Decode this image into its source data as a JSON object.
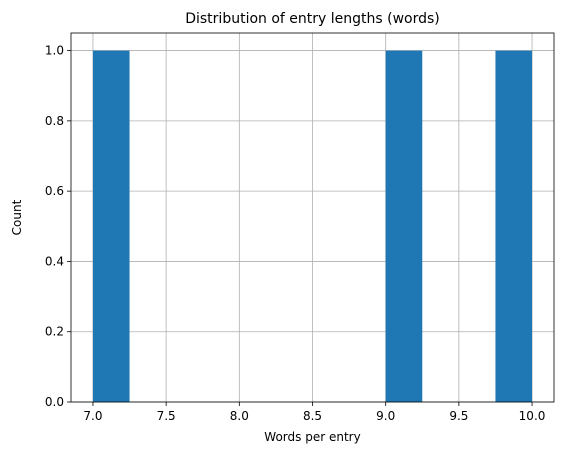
{
  "chart_data": {
    "type": "bar",
    "title": "Distribution of entry lengths (words)",
    "xlabel": "Words per entry",
    "ylabel": "Count",
    "xlim": [
      6.85,
      10.15
    ],
    "ylim": [
      0,
      1.05
    ],
    "xticks": [
      7.0,
      7.5,
      8.0,
      8.5,
      9.0,
      9.5,
      10.0
    ],
    "xtick_labels": [
      "7.0",
      "7.5",
      "8.0",
      "8.5",
      "9.0",
      "9.5",
      "10.0"
    ],
    "yticks": [
      0.0,
      0.2,
      0.4,
      0.6,
      0.8,
      1.0
    ],
    "ytick_labels": [
      "0.0",
      "0.2",
      "0.4",
      "0.6",
      "0.8",
      "1.0"
    ],
    "grid": true,
    "bin_edges": [
      7.0,
      7.25,
      7.5,
      7.75,
      8.0,
      8.25,
      8.5,
      8.75,
      9.0,
      9.25,
      9.5,
      9.75,
      10.0
    ],
    "counts": [
      1,
      0,
      0,
      0,
      0,
      0,
      0,
      0,
      1,
      0,
      0,
      1
    ],
    "bar_color": "#1f77b4",
    "grid_color": "#b0b0b0"
  }
}
